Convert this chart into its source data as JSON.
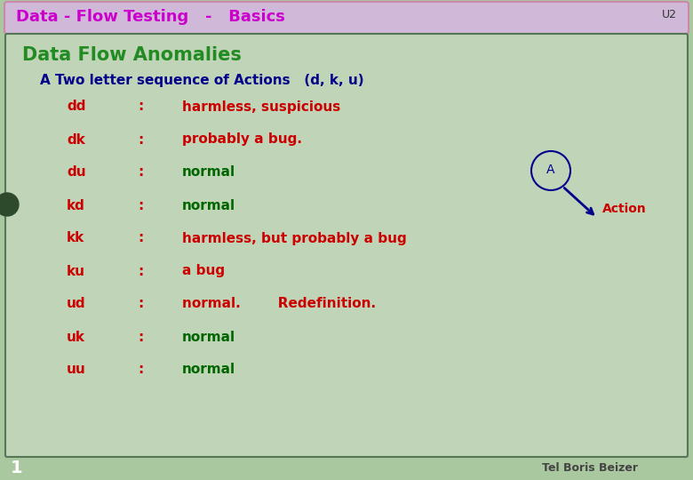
{
  "title": "Data - Flow Testing   -   Basics",
  "title_tag": "U2",
  "bg_outer": "#aac8a0",
  "bg_title": "#d0b8d8",
  "bg_main": "#c0d4b8",
  "heading": "Data Flow Anomalies",
  "subheading": "A Two letter sequence of Actions   (d, k, u)",
  "rows": [
    {
      "code": "dd",
      "desc": "harmless, suspicious",
      "desc_color": "#cc0000"
    },
    {
      "code": "dk",
      "desc": "probably a bug.",
      "desc_color": "#cc0000"
    },
    {
      "code": "du",
      "desc": "normal",
      "desc_color": "#006600"
    },
    {
      "code": "kd",
      "desc": "normal",
      "desc_color": "#006600"
    },
    {
      "code": "kk",
      "desc": "harmless, but probably a bug",
      "desc_color": "#cc0000"
    },
    {
      "code": "ku",
      "desc": "a bug",
      "desc_color": "#cc0000"
    },
    {
      "code": "ud",
      "desc": "normal.        Redefinition.",
      "desc_color": "#cc0000"
    },
    {
      "code": "uk",
      "desc": "normal",
      "desc_color": "#006600"
    },
    {
      "code": "uu",
      "desc": "normal",
      "desc_color": "#006600"
    }
  ],
  "code_color": "#cc0000",
  "heading_color": "#228B22",
  "subheading_color": "#00008B",
  "title_color": "#cc00cc",
  "footer": "Tel Boris Beizer",
  "footer_num": "1",
  "circle_label": "A",
  "action_label": "Action",
  "action_color": "#cc0000",
  "circle_color": "#00008B",
  "arrow_color": "#00008B"
}
